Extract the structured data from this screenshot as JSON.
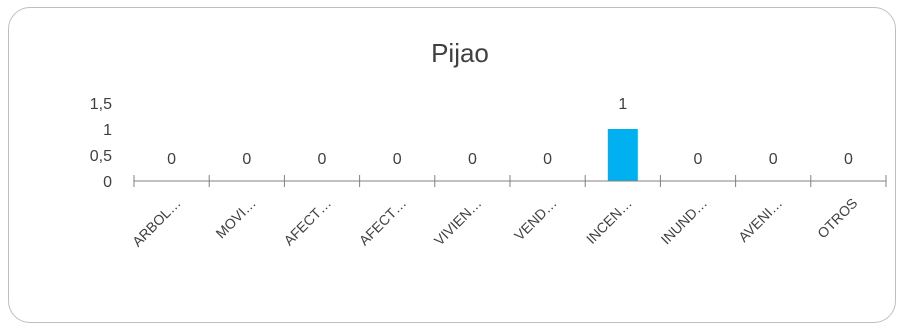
{
  "chart_data": {
    "type": "bar",
    "title": "Pijao",
    "categories": [
      "ARBOL…",
      "MOVI…",
      "AFECT…",
      "AFECT…",
      "VIVIEN…",
      "VEND…",
      "INCEN…",
      "INUND…",
      "AVENI…",
      "OTROS"
    ],
    "values": [
      0,
      0,
      0,
      0,
      0,
      0,
      1,
      0,
      0,
      0
    ],
    "y_ticks": [
      "0",
      "0,5",
      "1",
      "1,5"
    ],
    "ylim": [
      0,
      1.5
    ],
    "data_labels": [
      "0",
      "0",
      "0",
      "0",
      "0",
      "0",
      "1",
      "0",
      "0",
      "0"
    ],
    "bar_color": "#00b0f0",
    "axis_color": "#808080",
    "grid": false,
    "legend": "none"
  }
}
